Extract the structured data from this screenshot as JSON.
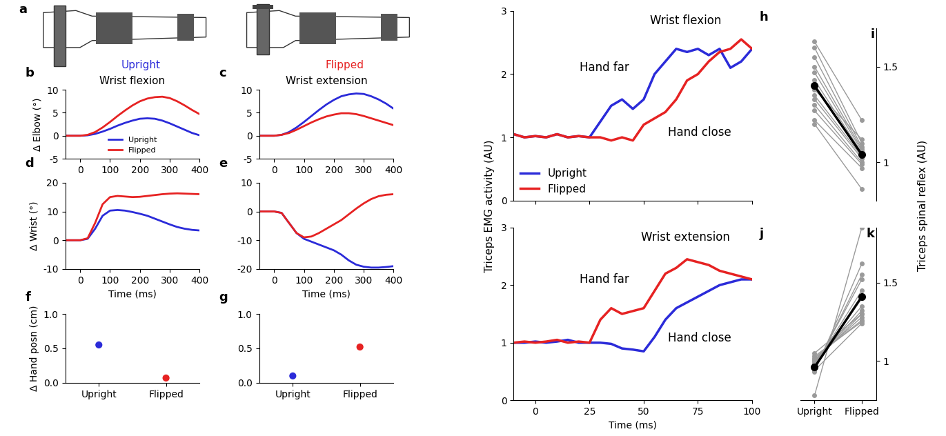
{
  "illustration": {
    "label": "a",
    "texts": [
      {
        "text": "Upright",
        "color": "#2b2bd9"
      },
      {
        "text": "Flipped",
        "color": "#e62222"
      }
    ]
  },
  "chart_data": [
    {
      "label": "b",
      "type": "line",
      "title": "Wrist flexion",
      "y_label": "Δ Elbow (°)",
      "x": [
        -50,
        -25,
        0,
        25,
        50,
        75,
        100,
        125,
        150,
        175,
        200,
        225,
        250,
        275,
        300,
        325,
        350,
        375,
        400
      ],
      "xlim": [
        -50,
        400
      ],
      "xticks": [
        0,
        100,
        200,
        300,
        400
      ],
      "ylim": [
        -5,
        10
      ],
      "yticks": [
        -5,
        0,
        5,
        10
      ],
      "legend": "lower center",
      "series": [
        {
          "name": "Upright",
          "color": "#2b2bd9",
          "values": [
            0,
            0,
            0,
            0.1,
            0.4,
            0.9,
            1.5,
            2.2,
            2.8,
            3.3,
            3.7,
            3.8,
            3.7,
            3.3,
            2.7,
            2.0,
            1.3,
            0.6,
            0.1
          ]
        },
        {
          "name": "Flipped",
          "color": "#e62222",
          "values": [
            0,
            0,
            0,
            0.2,
            0.8,
            1.8,
            3.0,
            4.3,
            5.5,
            6.6,
            7.5,
            8.1,
            8.4,
            8.5,
            8.2,
            7.5,
            6.6,
            5.6,
            4.7
          ]
        }
      ]
    },
    {
      "label": "c",
      "type": "line",
      "title": "Wrist extension",
      "x": [
        -50,
        -25,
        0,
        25,
        50,
        75,
        100,
        125,
        150,
        175,
        200,
        225,
        250,
        275,
        300,
        325,
        350,
        375,
        400
      ],
      "xlim": [
        -50,
        400
      ],
      "xticks": [
        0,
        100,
        200,
        300,
        400
      ],
      "ylim": [
        -5,
        10
      ],
      "yticks": [
        -5,
        0,
        5,
        10
      ],
      "series": [
        {
          "name": "Upright",
          "color": "#2b2bd9",
          "values": [
            0,
            0,
            0,
            0.2,
            0.8,
            1.8,
            3.0,
            4.3,
            5.6,
            6.8,
            7.8,
            8.6,
            9.0,
            9.2,
            9.1,
            8.6,
            7.9,
            7.0,
            5.9
          ]
        },
        {
          "name": "Flipped",
          "color": "#e62222",
          "values": [
            0,
            0,
            0,
            0.2,
            0.6,
            1.3,
            2.1,
            2.9,
            3.6,
            4.2,
            4.6,
            4.9,
            4.9,
            4.7,
            4.3,
            3.8,
            3.3,
            2.8,
            2.3
          ]
        }
      ]
    },
    {
      "label": "d",
      "type": "line",
      "y_label": "Δ Wrist (°)",
      "x_label": "Time (ms)",
      "x": [
        -50,
        -25,
        0,
        25,
        50,
        75,
        100,
        125,
        150,
        175,
        200,
        225,
        250,
        275,
        300,
        325,
        350,
        375,
        400
      ],
      "xlim": [
        -50,
        400
      ],
      "xticks": [
        0,
        100,
        200,
        300,
        400
      ],
      "ylim": [
        -10,
        20
      ],
      "yticks": [
        -10,
        0,
        10,
        20
      ],
      "series": [
        {
          "name": "Upright",
          "color": "#2b2bd9",
          "values": [
            0,
            0,
            0,
            0.5,
            4,
            8.5,
            10.3,
            10.5,
            10.3,
            9.8,
            9.2,
            8.5,
            7.5,
            6.5,
            5.5,
            4.6,
            4.0,
            3.6,
            3.4
          ]
        },
        {
          "name": "Flipped",
          "color": "#e62222",
          "values": [
            0,
            0,
            0,
            0.7,
            6,
            12.5,
            15,
            15.4,
            15.2,
            15,
            15.1,
            15.4,
            15.7,
            16,
            16.2,
            16.3,
            16.2,
            16.1,
            16
          ]
        }
      ]
    },
    {
      "label": "e",
      "type": "line",
      "x_label": "Time (ms)",
      "x": [
        -50,
        -25,
        0,
        25,
        50,
        75,
        100,
        125,
        150,
        175,
        200,
        225,
        250,
        275,
        300,
        325,
        350,
        375,
        400
      ],
      "xlim": [
        -50,
        400
      ],
      "xticks": [
        0,
        100,
        200,
        300,
        400
      ],
      "ylim": [
        -20,
        10
      ],
      "yticks": [
        -20,
        -10,
        0,
        10
      ],
      "series": [
        {
          "name": "Upright",
          "color": "#2b2bd9",
          "values": [
            0,
            0,
            0,
            -0.5,
            -4,
            -7.5,
            -9.5,
            -10.5,
            -11.5,
            -12.5,
            -13.5,
            -15,
            -17,
            -18.5,
            -19.2,
            -19.5,
            -19.5,
            -19.3,
            -19
          ]
        },
        {
          "name": "Flipped",
          "color": "#e62222",
          "values": [
            0,
            0,
            0,
            -0.5,
            -4,
            -7.5,
            -9,
            -8.7,
            -7.5,
            -6,
            -4.5,
            -3,
            -1,
            1,
            2.8,
            4.3,
            5.3,
            5.8,
            6
          ]
        }
      ]
    },
    {
      "label": "f",
      "type": "scatter",
      "y_label": "Δ Hand posn (cm)",
      "marker": "o",
      "categories": [
        "Upright",
        "Flipped"
      ],
      "values": [
        0.55,
        0.07
      ],
      "colors": [
        "#2b2bd9",
        "#e62222"
      ],
      "ylim": [
        0,
        1
      ],
      "yticks": [
        {
          "value": 0,
          "label": "0.0"
        },
        {
          "value": 0.5,
          "label": "0.5"
        },
        {
          "value": 1,
          "label": "1.0"
        }
      ]
    },
    {
      "label": "g",
      "type": "scatter",
      "marker": "o",
      "categories": [
        "Upright",
        "Flipped"
      ],
      "values": [
        0.1,
        0.52
      ],
      "colors": [
        "#2b2bd9",
        "#e62222"
      ],
      "ylim": [
        0,
        1
      ],
      "yticks": [
        {
          "value": 0,
          "label": "0.0"
        },
        {
          "value": 0.5,
          "label": "0.5"
        },
        {
          "value": 1,
          "label": "1.0"
        }
      ]
    },
    {
      "label": "h",
      "type": "line",
      "title": "Wrist flexion",
      "y_label": "Triceps EMG activity (AU)",
      "annotations": [
        "Hand far",
        "Hand close"
      ],
      "tick_labels": "y",
      "legend": "lower left",
      "x": [
        -10,
        -5,
        0,
        5,
        10,
        15,
        20,
        25,
        30,
        35,
        40,
        45,
        50,
        55,
        60,
        65,
        70,
        75,
        80,
        85,
        90,
        95,
        100
      ],
      "xlim": [
        -10,
        100
      ],
      "xticks": [
        0,
        25,
        50,
        75,
        100
      ],
      "ylim": [
        0,
        3
      ],
      "yticks": [
        0,
        1,
        2,
        3
      ],
      "series": [
        {
          "name": "Upright",
          "color": "#2b2bd9",
          "values": [
            1.05,
            1.0,
            1.02,
            1.0,
            1.05,
            1.0,
            1.02,
            1.0,
            1.25,
            1.5,
            1.6,
            1.45,
            1.6,
            2.0,
            2.2,
            2.4,
            2.35,
            2.4,
            2.3,
            2.4,
            2.1,
            2.2,
            2.4
          ]
        },
        {
          "name": "Flipped",
          "color": "#e62222",
          "values": [
            1.05,
            1.0,
            1.02,
            1.0,
            1.05,
            1.0,
            1.02,
            1.0,
            1.0,
            0.95,
            1.0,
            0.95,
            1.2,
            1.3,
            1.4,
            1.6,
            1.9,
            2.0,
            2.2,
            2.35,
            2.4,
            2.55,
            2.4
          ]
        }
      ]
    },
    {
      "label": "j",
      "type": "line",
      "title": "Wrist extension",
      "x_label": "Time (ms)",
      "annotations": [
        "Hand far",
        "Hand close"
      ],
      "x": [
        -10,
        -5,
        0,
        5,
        10,
        15,
        20,
        25,
        30,
        35,
        40,
        45,
        50,
        55,
        60,
        65,
        70,
        75,
        80,
        85,
        90,
        95,
        100
      ],
      "xlim": [
        -10,
        100
      ],
      "xticks": [
        0,
        25,
        50,
        75,
        100
      ],
      "ylim": [
        0,
        3
      ],
      "yticks": [
        0,
        1,
        2,
        3
      ],
      "series": [
        {
          "name": "Upright",
          "color": "#2b2bd9",
          "values": [
            1.0,
            1.0,
            1.02,
            1.0,
            1.02,
            1.05,
            1.0,
            1.0,
            1.0,
            0.98,
            0.9,
            0.88,
            0.85,
            1.1,
            1.4,
            1.6,
            1.7,
            1.8,
            1.9,
            2.0,
            2.05,
            2.1,
            2.1
          ]
        },
        {
          "name": "Flipped",
          "color": "#e62222",
          "values": [
            1.0,
            1.02,
            1.0,
            1.02,
            1.05,
            1.0,
            1.02,
            1.0,
            1.4,
            1.6,
            1.5,
            1.55,
            1.6,
            1.9,
            2.2,
            2.3,
            2.45,
            2.4,
            2.35,
            2.25,
            2.2,
            2.15,
            2.1
          ]
        }
      ]
    },
    {
      "label": "i",
      "type": "slope",
      "y_label": "Triceps spinal reflex (AU)",
      "tick_labels": "y",
      "categories": [
        "Upright",
        "Flipped"
      ],
      "ylim": [
        0.8,
        1.7
      ],
      "yticks": [
        1,
        1.5
      ],
      "subjects": {
        "color": "#9a9a9a",
        "values": [
          [
            1.63,
            1.22
          ],
          [
            1.6,
            1.1
          ],
          [
            1.55,
            1.08
          ],
          [
            1.5,
            1.07
          ],
          [
            1.47,
            1.06
          ],
          [
            1.43,
            1.05
          ],
          [
            1.4,
            1.04
          ],
          [
            1.35,
            1.03
          ],
          [
            1.33,
            1.02
          ],
          [
            1.3,
            1.0
          ],
          [
            1.27,
            0.99
          ],
          [
            1.22,
            0.97
          ],
          [
            1.2,
            0.86
          ],
          [
            1.38,
            1.12
          ]
        ]
      },
      "mean": {
        "color": "#000000",
        "marker": "o",
        "values": [
          1.4,
          1.04
        ]
      }
    },
    {
      "label": "k",
      "type": "slope",
      "categories": [
        "Upright",
        "Flipped"
      ],
      "ylim": [
        0.75,
        1.85
      ],
      "yticks": [
        1,
        1.5
      ],
      "subjects": {
        "color": "#9a9a9a",
        "values": [
          [
            0.78,
            1.85
          ],
          [
            0.93,
            1.62
          ],
          [
            0.95,
            1.55
          ],
          [
            0.96,
            1.52
          ],
          [
            0.97,
            1.45
          ],
          [
            0.98,
            1.4
          ],
          [
            0.99,
            1.35
          ],
          [
            1.0,
            1.32
          ],
          [
            1.0,
            1.3
          ],
          [
            1.01,
            1.28
          ],
          [
            1.02,
            1.26
          ],
          [
            1.03,
            1.25
          ],
          [
            0.94,
            1.24
          ],
          [
            1.05,
            1.3
          ]
        ]
      },
      "mean": {
        "color": "#000000",
        "marker": "o",
        "values": [
          0.96,
          1.41
        ]
      }
    }
  ]
}
